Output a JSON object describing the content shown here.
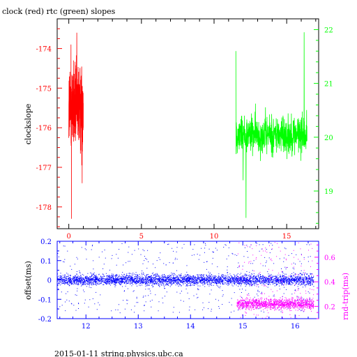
{
  "chart_data": [
    {
      "type": "line",
      "title": "clock (red) rtc (green) slopes",
      "ylabel": "clockslope",
      "xlabel": "",
      "xlim": [
        -0.8,
        17.2
      ],
      "xticks": [
        "0",
        "5",
        "10",
        "15"
      ],
      "xtick_values": [
        0,
        5,
        10,
        15
      ],
      "ylim_left": [
        -178.55,
        -173.25
      ],
      "yticks_left": [
        "-178",
        "-177",
        "-176",
        "-175",
        "-174"
      ],
      "ytick_values_left": [
        -178,
        -177,
        -176,
        -175,
        -174
      ],
      "ylim_right": [
        18.3,
        22.2
      ],
      "yticks_right": [
        "19",
        "20",
        "21",
        "22"
      ],
      "ytick_values_right": [
        19,
        20,
        21,
        22
      ],
      "grid": false,
      "series": [
        {
          "color": "#ff0000",
          "axis": "left",
          "x_range": [
            0.0,
            1.0
          ],
          "center": -175.5,
          "envelope": [
            -176.7,
            -174.6
          ],
          "extremes": [
            [
              0.18,
              -178.3
            ],
            [
              0.55,
              -173.6
            ],
            [
              0.15,
              -173.9
            ],
            [
              0.92,
              -177.4
            ]
          ]
        },
        {
          "color": "#00ff00",
          "axis": "right",
          "x_range": [
            11.5,
            16.4
          ],
          "center": 20.05,
          "envelope": [
            19.75,
            20.45
          ],
          "extremes": [
            [
              11.5,
              21.6
            ],
            [
              12.2,
              18.5
            ],
            [
              16.2,
              21.95
            ],
            [
              12.0,
              19.2
            ]
          ]
        }
      ]
    },
    {
      "type": "scatter",
      "title": "",
      "xlabel": "",
      "ylabel": "offset(ms)",
      "y2label": "rnd-trip(ms)",
      "xlim": [
        11.45,
        16.45
      ],
      "xticks": [
        "12",
        "13",
        "14",
        "15",
        "16"
      ],
      "xtick_values": [
        12,
        13,
        14,
        15,
        16
      ],
      "ylim_left": [
        -0.2,
        0.2
      ],
      "yticks_left": [
        "-0.2",
        "-0.1",
        "0",
        "0.1",
        "0.2"
      ],
      "ytick_values_left": [
        -0.2,
        -0.1,
        0,
        0.1,
        0.2
      ],
      "ylim_right": [
        0.1,
        0.73
      ],
      "yticks_right": [
        "0.2",
        "0.4",
        "0.6"
      ],
      "ytick_values_right": [
        0.2,
        0.4,
        0.6
      ],
      "grid": false,
      "series": [
        {
          "color": "#0000ff",
          "axis": "left",
          "x_range": [
            11.45,
            16.35
          ],
          "center": 0.0,
          "band_halfwidth": 0.02,
          "scatter_range": [
            -0.17,
            0.19
          ]
        },
        {
          "color": "#ff00ff",
          "axis": "right",
          "x_range": [
            14.88,
            16.35
          ],
          "center": 0.22,
          "band_halfwidth": 0.03,
          "scatter_range": [
            0.1,
            0.72
          ]
        }
      ]
    }
  ],
  "footer": "2015-01-11 string.physics.ubc.ca"
}
